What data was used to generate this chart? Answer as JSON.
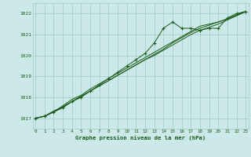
{
  "title": "Graphe pression niveau de la mer (hPa)",
  "bg_color": "#cce8e8",
  "grid_color": "#99cccc",
  "line_color": "#1a5c1a",
  "marker_color": "#1a5c1a",
  "text_color": "#1a5c1a",
  "hours": [
    0,
    1,
    2,
    3,
    4,
    5,
    6,
    7,
    8,
    9,
    10,
    11,
    12,
    13,
    14,
    15,
    16,
    17,
    18,
    19,
    20,
    21,
    22,
    23
  ],
  "series1": [
    1017.0,
    1017.1,
    1017.3,
    1017.5,
    1017.8,
    1018.0,
    1018.3,
    1018.6,
    1018.9,
    1019.2,
    1019.5,
    1019.8,
    1020.1,
    1020.6,
    1021.3,
    1021.6,
    1021.3,
    1021.3,
    1021.2,
    1021.3,
    1021.3,
    1021.8,
    1022.0,
    1022.1
  ],
  "series2": [
    1017.0,
    1017.1,
    1017.3,
    1017.55,
    1017.8,
    1018.05,
    1018.3,
    1018.55,
    1018.8,
    1019.05,
    1019.3,
    1019.55,
    1019.8,
    1020.05,
    1020.3,
    1020.6,
    1020.85,
    1021.1,
    1021.3,
    1021.45,
    1021.6,
    1021.75,
    1021.95,
    1022.1
  ],
  "series3": [
    1017.0,
    1017.1,
    1017.35,
    1017.55,
    1017.8,
    1018.05,
    1018.3,
    1018.55,
    1018.8,
    1019.05,
    1019.3,
    1019.55,
    1019.8,
    1020.0,
    1020.25,
    1020.5,
    1020.75,
    1021.0,
    1021.2,
    1021.35,
    1021.5,
    1021.7,
    1021.9,
    1022.1
  ],
  "series4": [
    1017.0,
    1017.1,
    1017.3,
    1017.6,
    1017.9,
    1018.1,
    1018.4,
    1018.65,
    1018.9,
    1019.15,
    1019.4,
    1019.65,
    1019.9,
    1020.15,
    1020.4,
    1020.65,
    1020.9,
    1021.15,
    1021.4,
    1021.5,
    1021.6,
    1021.75,
    1021.9,
    1022.1
  ],
  "ylim_min": 1016.5,
  "ylim_max": 1022.5,
  "yticks": [
    1017,
    1018,
    1019,
    1020,
    1021,
    1022
  ],
  "xticks": [
    0,
    1,
    2,
    3,
    4,
    5,
    6,
    7,
    8,
    9,
    10,
    11,
    12,
    13,
    14,
    15,
    16,
    17,
    18,
    19,
    20,
    21,
    22,
    23
  ]
}
